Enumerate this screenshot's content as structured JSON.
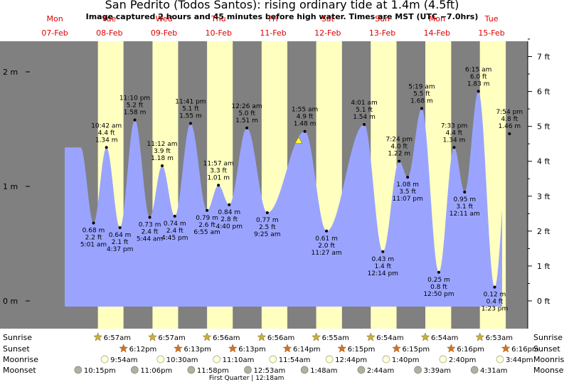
{
  "title": "San Pedrito (Todos Santos): rising  ordinary tide at 1.4m (4.5ft)",
  "subtitle": "Image captured 2 hours and 45 minutes before high water. Times are MST (UTC −7.0hrs)",
  "chart_data": {
    "type": "area",
    "days": [
      {
        "dow": "Mon",
        "date": "07-Feb"
      },
      {
        "dow": "Tue",
        "date": "08-Feb"
      },
      {
        "dow": "Wed",
        "date": "09-Feb"
      },
      {
        "dow": "Thu",
        "date": "10-Feb"
      },
      {
        "dow": "Fri",
        "date": "11-Feb"
      },
      {
        "dow": "Sat",
        "date": "12-Feb"
      },
      {
        "dow": "Sun",
        "date": "13-Feb"
      },
      {
        "dow": "Mon",
        "date": "14-Feb"
      },
      {
        "dow": "Tue",
        "date": "15-Feb"
      }
    ],
    "ylim_m": [
      -0.05,
      2.2
    ],
    "y_ticks_m": [
      "0 m",
      "1 m",
      "2 m"
    ],
    "y_ticks_ft": [
      "0 ft",
      "1 ft",
      "2 ft",
      "3 ft",
      "4 ft",
      "5 ft",
      "6 ft",
      "7 ft"
    ],
    "tides": [
      {
        "time": "5:01 am",
        "day": 1,
        "hr": 5.02,
        "m": "0.68 m",
        "ft": "2.2 ft",
        "v": 0.68,
        "type": "low"
      },
      {
        "time": "10:42 am",
        "day": 1,
        "hr": 10.7,
        "m": "1.34 m",
        "ft": "4.4 ft",
        "v": 1.34,
        "type": "high"
      },
      {
        "time": "4:37 pm",
        "day": 1,
        "hr": 16.62,
        "m": "0.64 m",
        "ft": "2.1 ft",
        "v": 0.64,
        "type": "low"
      },
      {
        "time": "11:10 pm",
        "day": 1,
        "hr": 23.17,
        "m": "1.58 m",
        "ft": "5.2 ft",
        "v": 1.58,
        "type": "high"
      },
      {
        "time": "5:44 am",
        "day": 2,
        "hr": 5.73,
        "m": "0.73 m",
        "ft": "2.4 ft",
        "v": 0.73,
        "type": "low"
      },
      {
        "time": "11:12 am",
        "day": 2,
        "hr": 11.2,
        "m": "1.18 m",
        "ft": "3.9 ft",
        "v": 1.18,
        "type": "high"
      },
      {
        "time": "4:45 pm",
        "day": 2,
        "hr": 16.75,
        "m": "0.74 m",
        "ft": "2.4 ft",
        "v": 0.74,
        "type": "low"
      },
      {
        "time": "11:41 pm",
        "day": 2,
        "hr": 23.68,
        "m": "1.55 m",
        "ft": "5.1 ft",
        "v": 1.55,
        "type": "high"
      },
      {
        "time": "6:55 am",
        "day": 3,
        "hr": 6.92,
        "m": "0.79 m",
        "ft": "2.6 ft",
        "v": 0.79,
        "type": "low"
      },
      {
        "time": "11:57 am",
        "day": 3,
        "hr": 11.95,
        "m": "1.01 m",
        "ft": "3.3 ft",
        "v": 1.01,
        "type": "high"
      },
      {
        "time": "4:40 pm",
        "day": 3,
        "hr": 16.67,
        "m": "0.84 m",
        "ft": "2.8 ft",
        "v": 0.84,
        "type": "low"
      },
      {
        "time": "12:26 am",
        "day": 4,
        "hr": 0.43,
        "m": "1.51 m",
        "ft": "5.0 ft",
        "v": 1.51,
        "type": "high"
      },
      {
        "time": "9:25 am",
        "day": 4,
        "hr": 9.42,
        "m": "0.77 m",
        "ft": "2.5 ft",
        "v": 0.77,
        "type": "low"
      },
      {
        "time": "1:55 am",
        "day": 5,
        "hr": 1.92,
        "m": "1.48 m",
        "ft": "4.9 ft",
        "v": 1.48,
        "type": "high"
      },
      {
        "time": "11:27 am",
        "day": 5,
        "hr": 11.45,
        "m": "0.61 m",
        "ft": "2.0 ft",
        "v": 0.61,
        "type": "low"
      },
      {
        "time": "4:01 am",
        "day": 6,
        "hr": 4.02,
        "m": "1.54 m",
        "ft": "5.1 ft",
        "v": 1.54,
        "type": "high"
      },
      {
        "time": "12:14 pm",
        "day": 6,
        "hr": 12.23,
        "m": "0.43 m",
        "ft": "1.4 ft",
        "v": 0.43,
        "type": "low"
      },
      {
        "time": "7:24 pm",
        "day": 6,
        "hr": 19.4,
        "m": "1.22 m",
        "ft": "4.0 ft",
        "v": 1.22,
        "type": "high"
      },
      {
        "time": "11:07 pm",
        "day": 6,
        "hr": 23.12,
        "m": "1.08 m",
        "ft": "3.5 ft",
        "v": 1.08,
        "type": "low"
      },
      {
        "time": "5:19 am",
        "day": 7,
        "hr": 5.32,
        "m": "1.68 m",
        "ft": "5.5 ft",
        "v": 1.68,
        "type": "high"
      },
      {
        "time": "12:50 pm",
        "day": 7,
        "hr": 12.83,
        "m": "0.25 m",
        "ft": "0.8 ft",
        "v": 0.25,
        "type": "low"
      },
      {
        "time": "7:33 pm",
        "day": 7,
        "hr": 19.55,
        "m": "1.34 m",
        "ft": "4.4 ft",
        "v": 1.34,
        "type": "high"
      },
      {
        "time": "12:11 am",
        "day": 8,
        "hr": 0.18,
        "m": "0.95 m",
        "ft": "3.1 ft",
        "v": 0.95,
        "type": "low"
      },
      {
        "time": "6:15 am",
        "day": 8,
        "hr": 6.25,
        "m": "1.83 m",
        "ft": "6.0 ft",
        "v": 1.83,
        "type": "high"
      },
      {
        "time": "1:23 pm",
        "day": 8,
        "hr": 13.38,
        "m": "0.12 m",
        "ft": "0.4 ft",
        "v": 0.12,
        "type": "low"
      },
      {
        "time": "7:54 pm",
        "day": 8,
        "hr": 19.9,
        "m": "1.46 m",
        "ft": "4.8 ft",
        "v": 1.46,
        "type": "high"
      }
    ],
    "current": {
      "day": 4,
      "hr": 23.2,
      "v": 1.4
    },
    "sun": [
      {
        "day": 1,
        "sunrise": "6:57am",
        "sunset": "6:12pm",
        "rise_hr": 6.95,
        "set_hr": 18.2
      },
      {
        "day": 2,
        "sunrise": "6:57am",
        "sunset": "6:13pm",
        "rise_hr": 6.95,
        "set_hr": 18.22
      },
      {
        "day": 3,
        "sunrise": "6:56am",
        "sunset": "6:13pm",
        "rise_hr": 6.93,
        "set_hr": 18.22
      },
      {
        "day": 4,
        "sunrise": "6:56am",
        "sunset": "6:14pm",
        "rise_hr": 6.93,
        "set_hr": 18.23
      },
      {
        "day": 5,
        "sunrise": "6:55am",
        "sunset": "6:15pm",
        "rise_hr": 6.92,
        "set_hr": 18.25
      },
      {
        "day": 6,
        "sunrise": "6:54am",
        "sunset": "6:15pm",
        "rise_hr": 6.9,
        "set_hr": 18.25
      },
      {
        "day": 7,
        "sunrise": "6:54am",
        "sunset": "6:16pm",
        "rise_hr": 6.9,
        "set_hr": 18.27
      },
      {
        "day": 8,
        "sunrise": "6:53am",
        "sunset": "6:16pm",
        "rise_hr": 6.88,
        "set_hr": 18.27
      }
    ],
    "moonrise": [
      {
        "day": 1,
        "hr": 9.9,
        "label": "9:54am"
      },
      {
        "day": 2,
        "hr": 10.5,
        "label": "10:30am"
      },
      {
        "day": 3,
        "hr": 11.17,
        "label": "11:10am"
      },
      {
        "day": 4,
        "hr": 11.9,
        "label": "11:54am"
      },
      {
        "day": 5,
        "hr": 12.73,
        "label": "12:44pm"
      },
      {
        "day": 6,
        "hr": 13.67,
        "label": "1:40pm"
      },
      {
        "day": 7,
        "hr": 14.67,
        "label": "2:40pm"
      },
      {
        "day": 8,
        "hr": 15.73,
        "label": "3:44pm"
      }
    ],
    "moonset": [
      {
        "day": 0,
        "hr": 22.25,
        "label": "10:15pm"
      },
      {
        "day": 1,
        "hr": 23.1,
        "label": "11:06pm"
      },
      {
        "day": 2,
        "hr": 23.97,
        "label": "11:58pm"
      },
      {
        "day": 4,
        "hr": 0.88,
        "label": "12:53am"
      },
      {
        "day": 5,
        "hr": 1.8,
        "label": "1:48am"
      },
      {
        "day": 6,
        "hr": 2.73,
        "label": "2:44am"
      },
      {
        "day": 7,
        "hr": 3.65,
        "label": "3:39am"
      },
      {
        "day": 8,
        "hr": 4.52,
        "label": "4:31am"
      }
    ],
    "moon_phase": {
      "day": 4,
      "hr": 0.3,
      "label": "First Quarter | 12:18am"
    }
  },
  "rows": {
    "sunrise": "Sunrise",
    "sunset": "Sunset",
    "moonrise": "Moonrise",
    "moonset": "Moonset"
  },
  "colors": {
    "night": "#808080",
    "day": "#ffffc0",
    "water": "#9aa4ff",
    "date": "#dd0000",
    "sunset_star": "#d87028",
    "sunrise_star": "#c8b040"
  }
}
